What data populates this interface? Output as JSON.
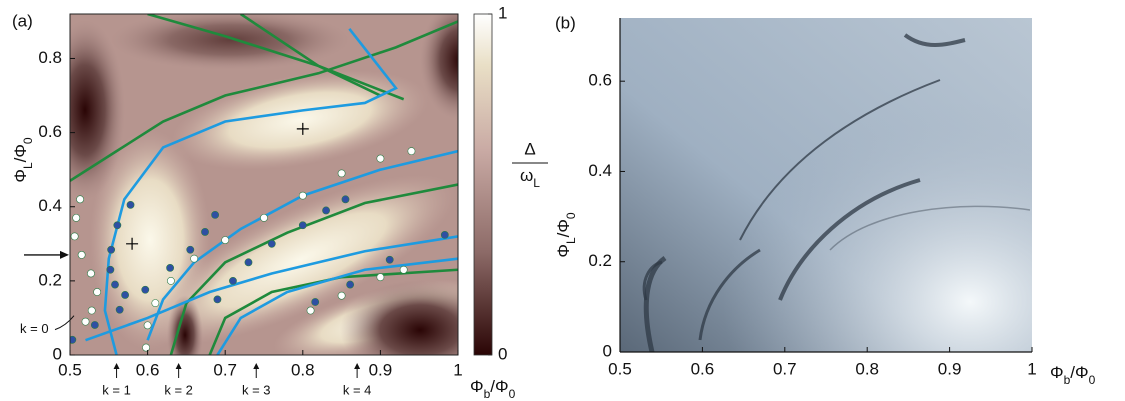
{
  "chart_data": [
    {
      "type": "contour",
      "panel_label": "(a)",
      "xlabel": [
        "Φ",
        "b",
        "/Φ",
        "0"
      ],
      "ylabel": [
        "Φ",
        "L",
        "/Φ",
        "0"
      ],
      "xlim": [
        0.5,
        1
      ],
      "ylim": [
        0,
        0.92
      ],
      "xticks": [
        0.5,
        0.6,
        0.7,
        0.8,
        0.9,
        1
      ],
      "yticks": [
        0,
        0.2,
        0.4,
        0.6,
        0.8
      ],
      "colorbar": {
        "label_top": "Δ",
        "label_bottom": [
          "ω",
          "L"
        ],
        "lim": [
          0,
          1
        ],
        "ticks": [
          0,
          1
        ]
      },
      "annotations": [
        {
          "text": "k = 0",
          "x": 0.5,
          "y": 0.09
        },
        {
          "text": "k = 1",
          "x": 0.56
        },
        {
          "text": "k = 2",
          "x": 0.64
        },
        {
          "text": "k = 3",
          "x": 0.74
        },
        {
          "text": "k = 4",
          "x": 0.87
        }
      ],
      "flux_arrow": 0.27,
      "series": [
        {
          "style": "line",
          "color": "#1f8a3c",
          "x": [
            0.5,
            0.56,
            0.62,
            0.7,
            0.82,
            0.92,
            1.0
          ],
          "y": [
            0.47,
            0.55,
            0.63,
            0.7,
            0.76,
            0.83,
            0.9
          ]
        },
        {
          "style": "line",
          "color": "#1f8a3c",
          "x": [
            0.6,
            0.7,
            0.82,
            0.93
          ],
          "y": [
            0.92,
            0.86,
            0.78,
            0.69
          ]
        },
        {
          "style": "line",
          "color": "#1f8a3c",
          "x": [
            0.72,
            0.82,
            0.9
          ],
          "y": [
            0.92,
            0.78,
            0.7
          ]
        },
        {
          "style": "line",
          "color": "#1f8a3c",
          "x": [
            0.63,
            0.65,
            0.7,
            0.78,
            0.88,
            1.0
          ],
          "y": [
            0.0,
            0.14,
            0.25,
            0.33,
            0.41,
            0.46
          ]
        },
        {
          "style": "line",
          "color": "#1f8a3c",
          "x": [
            0.68,
            0.7,
            0.76,
            0.85,
            1.0
          ],
          "y": [
            0.0,
            0.1,
            0.17,
            0.21,
            0.23
          ]
        },
        {
          "style": "line",
          "color": "#1e9be0",
          "x": [
            0.56,
            0.545,
            0.55,
            0.57,
            0.62,
            0.7,
            0.8,
            0.88,
            0.92,
            0.86
          ],
          "y": [
            0.0,
            0.12,
            0.26,
            0.42,
            0.56,
            0.63,
            0.66,
            0.68,
            0.72,
            0.88
          ]
        },
        {
          "style": "line",
          "color": "#1e9be0",
          "x": [
            0.6,
            0.62,
            0.66,
            0.72,
            0.8,
            0.9,
            1.0
          ],
          "y": [
            0.04,
            0.15,
            0.25,
            0.34,
            0.43,
            0.5,
            0.55
          ]
        },
        {
          "style": "line",
          "color": "#1e9be0",
          "x": [
            0.69,
            0.72,
            0.78,
            0.88,
            1.0
          ],
          "y": [
            0.0,
            0.1,
            0.17,
            0.23,
            0.26
          ]
        },
        {
          "style": "line",
          "color": "#1e9be0",
          "x": [
            0.52,
            0.6,
            0.68,
            0.76,
            0.88,
            1.0
          ],
          "y": [
            0.04,
            0.1,
            0.17,
            0.22,
            0.28,
            0.32
          ]
        },
        {
          "style": "dots",
          "color": "#2e4fa3",
          "x": [
            0.503,
            0.532,
            0.564,
            0.597,
            0.629,
            0.655,
            0.674,
            0.687
          ],
          "y": [
            0.041,
            0.081,
            0.122,
            0.176,
            0.235,
            0.284,
            0.332,
            0.378
          ]
        },
        {
          "style": "dots",
          "color": "#2e4fa3",
          "x": [
            0.578,
            0.561,
            0.553,
            0.552,
            0.558,
            0.571
          ],
          "y": [
            0.405,
            0.35,
            0.284,
            0.23,
            0.19,
            0.162
          ]
        },
        {
          "style": "dots",
          "color": "#2e4fa3",
          "x": [
            0.69,
            0.71,
            0.73,
            0.76,
            0.8,
            0.83,
            0.855
          ],
          "y": [
            0.15,
            0.2,
            0.25,
            0.3,
            0.35,
            0.39,
            0.42
          ]
        },
        {
          "style": "dots",
          "color": "#2e4fa3",
          "x": [
            0.816,
            0.861,
            0.912,
            0.983
          ],
          "y": [
            0.143,
            0.19,
            0.257,
            0.324
          ]
        },
        {
          "style": "dots",
          "color": "#ffffff",
          "x": [
            0.513,
            0.508,
            0.506,
            0.515,
            0.527,
            0.535,
            0.528,
            0.52
          ],
          "y": [
            0.42,
            0.37,
            0.32,
            0.27,
            0.22,
            0.17,
            0.12,
            0.09
          ]
        },
        {
          "style": "dots",
          "color": "#ffffff",
          "x": [
            0.598,
            0.6,
            0.61,
            0.63,
            0.66,
            0.7,
            0.75,
            0.8,
            0.85,
            0.9,
            0.94
          ],
          "y": [
            0.02,
            0.08,
            0.14,
            0.2,
            0.26,
            0.31,
            0.37,
            0.43,
            0.49,
            0.53,
            0.55
          ]
        },
        {
          "style": "dots",
          "color": "#ffffff",
          "x": [
            0.81,
            0.85,
            0.9,
            0.93
          ],
          "y": [
            0.12,
            0.16,
            0.21,
            0.23
          ]
        },
        {
          "style": "cross",
          "color": "#000000",
          "x": [
            0.8,
            0.58
          ],
          "y": [
            0.61,
            0.3
          ]
        }
      ]
    },
    {
      "type": "image",
      "panel_label": "(b)",
      "xlabel": [
        "Φ",
        "b",
        "/Φ",
        "0"
      ],
      "ylabel": [
        "Φ",
        "L",
        "/Φ",
        "0"
      ],
      "xlim": [
        0.5,
        1
      ],
      "ylim": [
        0,
        0.74
      ],
      "xticks": [
        0.5,
        0.6,
        0.7,
        0.8,
        0.9,
        1
      ],
      "yticks": [
        0,
        0.2,
        0.4,
        0.6
      ]
    }
  ]
}
